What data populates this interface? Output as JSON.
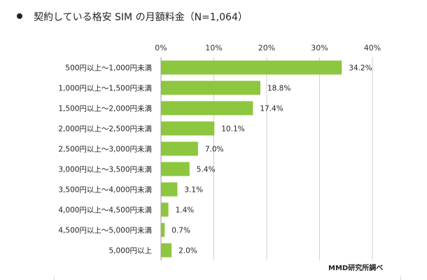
{
  "header": {
    "title": "契約している格安 SIM の月額料金（N=1,064）",
    "source": "MMD研究所調べ"
  },
  "chart_data": {
    "type": "bar",
    "orientation": "horizontal",
    "title": "契約している格安 SIM の月額料金（N=1,064）",
    "categories": [
      "500円以上～1,000円未満",
      "1,000円以上～1,500円未満",
      "1,500円以上～2,000円未満",
      "2,000円以上～2,500円未満",
      "2,500円以上～3,000円未満",
      "3,000円以上～3,500円未満",
      "3,500円以上～4,000円未満",
      "4,000円以上～4,500円未満",
      "4,500円以上～5,000円未満",
      "5,000円以上"
    ],
    "values": [
      34.2,
      18.8,
      17.4,
      10.1,
      7.0,
      5.4,
      3.1,
      1.4,
      0.7,
      2.0
    ],
    "value_labels": [
      "34.2%",
      "18.8%",
      "17.4%",
      "10.1%",
      "7.0%",
      "5.4%",
      "3.1%",
      "1.4%",
      "0.7%",
      "2.0%"
    ],
    "xticks": [
      0,
      10,
      20,
      30,
      40
    ],
    "xtick_labels": [
      "0%",
      "10%",
      "20%",
      "30%",
      "40%"
    ],
    "xlim": [
      0,
      40
    ],
    "axis_position": "top",
    "grid": true,
    "legend": "none",
    "bar_color": "#8dc63f",
    "grid_color": "#cfcfcf",
    "axis_color": "#999999"
  }
}
